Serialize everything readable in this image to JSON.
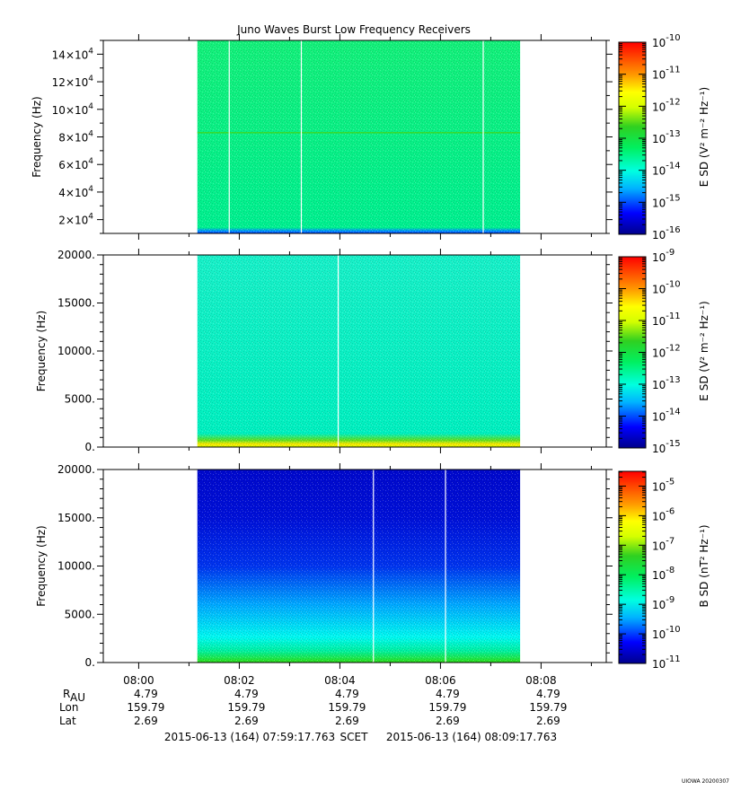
{
  "chart_data": {
    "type": "heatmap",
    "title": "Juno Waves Burst Low Frequency Receivers",
    "x_range": [
      "2015-06-13T07:59:17.763",
      "2015-06-13T08:09:17.763"
    ],
    "data_range": [
      "2015-06-13T08:01:10",
      "2015-06-13T08:07:35"
    ],
    "x_tick_labels": [
      "08:00",
      "08:02",
      "08:04",
      "08:06",
      "08:08"
    ],
    "panels": [
      {
        "ylabel": "Frequency (Hz)",
        "ylim": [
          10000,
          150000
        ],
        "y_tick_labels": [
          {
            "mantissa": "2×10",
            "exp": "4"
          },
          {
            "mantissa": "4×10",
            "exp": "4"
          },
          {
            "mantissa": "6×10",
            "exp": "4"
          },
          {
            "mantissa": "8×10",
            "exp": "4"
          },
          {
            "mantissa": "10×10",
            "exp": "4"
          },
          {
            "mantissa": "12×10",
            "exp": "4"
          },
          {
            "mantissa": "14×10",
            "exp": "4"
          }
        ],
        "colorbar_label": "E SD (V² m⁻² Hz⁻¹)",
        "colorbar_log_range": [
          -16,
          -10
        ],
        "colorbar_tick_exps": [
          "-16",
          "-15",
          "-14",
          "-13",
          "-12",
          "-11",
          "-10"
        ],
        "gap_times": [
          "08:01:48",
          "08:03:14",
          "08:06:51"
        ]
      },
      {
        "ylabel": "Frequency (Hz)",
        "ylim": [
          0,
          20000
        ],
        "y_tick_labels": [
          "0.",
          "5000.",
          "10000.",
          "15000.",
          "20000."
        ],
        "colorbar_label": "E SD (V² m⁻² Hz⁻¹)",
        "colorbar_log_range": [
          -15,
          -9
        ],
        "colorbar_tick_exps": [
          "-15",
          "-14",
          "-13",
          "-12",
          "-11",
          "-10",
          "-9"
        ],
        "gap_times": [
          "08:03:58"
        ]
      },
      {
        "ylabel": "Frequency (Hz)",
        "ylim": [
          0,
          20000
        ],
        "y_tick_labels": [
          "0.",
          "5000.",
          "10000.",
          "15000.",
          "20000."
        ],
        "colorbar_label": "B SD (nT² Hz⁻¹)",
        "colorbar_log_range": [
          -11,
          -4.5
        ],
        "colorbar_tick_exps": [
          "-11",
          "-10",
          "-9",
          "-8",
          "-7",
          "-6",
          "-5"
        ],
        "gap_times": [
          "08:04:40",
          "08:06:06"
        ]
      }
    ],
    "ephemeris": {
      "row_labels": [
        "R",
        "Lon",
        "Lat"
      ],
      "r_subscript": "AU",
      "values": {
        "R": [
          "4.79",
          "4.79",
          "4.79",
          "4.79",
          "4.79"
        ],
        "Lon": [
          "159.79",
          "159.79",
          "159.79",
          "159.79",
          "159.79"
        ],
        "Lat": [
          "2.69",
          "2.69",
          "2.69",
          "2.69",
          "2.69"
        ]
      }
    },
    "footer": {
      "start": "2015-06-13 (164) 07:59:17.763",
      "scet": "SCET",
      "end": "2015-06-13 (164) 08:09:17.763"
    },
    "credit": "UIOWA 20200307"
  }
}
